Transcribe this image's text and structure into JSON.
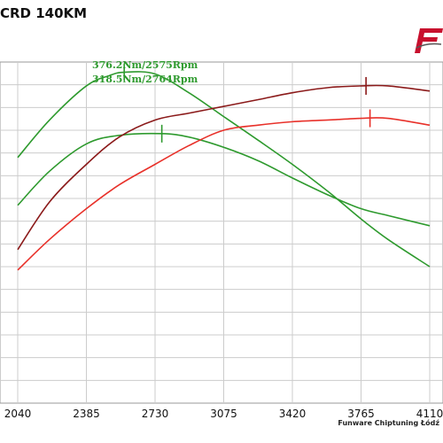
{
  "header": {
    "title": "CRD 140KM",
    "credit": "Funware Chiptuning Łódź"
  },
  "logo": {
    "name": "funware-logo-icon",
    "color": "#c8102e"
  },
  "colors": {
    "green": "#2e9a2e",
    "red": "#e8312a",
    "maroon": "#8b1a1a",
    "grid": "#cccccc"
  },
  "chart_data": {
    "type": "line",
    "title": "",
    "xlabel": "",
    "ylabel": "",
    "xlim": [
      2040,
      4110
    ],
    "ylim": [
      0,
      1
    ],
    "grid": true,
    "x_ticks": [
      "2040",
      "2385",
      "2730",
      "3075",
      "3420",
      "3765",
      "4110"
    ],
    "annotations": [
      {
        "text": "376.2Nm/2575Rpm",
        "x": 2575,
        "series": "torque-tuned"
      },
      {
        "text": "318.5Nm/2764Rpm",
        "x": 2764,
        "series": "torque-stock"
      }
    ],
    "series": [
      {
        "id": "torque-tuned",
        "color": "green",
        "x": [
          2040,
          2200,
          2385,
          2500,
          2575,
          2730,
          2900,
          3075,
          3250,
          3420,
          3600,
          3765,
          3900,
          4110
        ],
        "y": [
          0.72,
          0.83,
          0.93,
          0.96,
          0.97,
          0.965,
          0.91,
          0.84,
          0.77,
          0.7,
          0.62,
          0.54,
          0.48,
          0.4
        ],
        "peak_x": 2575
      },
      {
        "id": "torque-stock",
        "color": "green",
        "x": [
          2040,
          2200,
          2385,
          2550,
          2764,
          2900,
          3075,
          3250,
          3420,
          3600,
          3765,
          3900,
          4110
        ],
        "y": [
          0.58,
          0.68,
          0.76,
          0.785,
          0.79,
          0.78,
          0.75,
          0.71,
          0.66,
          0.61,
          0.57,
          0.55,
          0.52
        ],
        "peak_x": 2764
      },
      {
        "id": "power-tuned",
        "color": "maroon",
        "x": [
          2040,
          2200,
          2385,
          2550,
          2730,
          2900,
          3075,
          3250,
          3420,
          3600,
          3765,
          3900,
          4110
        ],
        "y": [
          0.45,
          0.59,
          0.7,
          0.78,
          0.83,
          0.85,
          0.87,
          0.89,
          0.91,
          0.925,
          0.93,
          0.93,
          0.915
        ],
        "peak_x": 3790
      },
      {
        "id": "power-stock",
        "color": "red",
        "x": [
          2040,
          2200,
          2385,
          2550,
          2730,
          2900,
          3075,
          3250,
          3420,
          3600,
          3765,
          3900,
          4110
        ],
        "y": [
          0.39,
          0.48,
          0.57,
          0.64,
          0.7,
          0.755,
          0.8,
          0.815,
          0.825,
          0.83,
          0.835,
          0.835,
          0.815
        ],
        "peak_x": 3810
      }
    ]
  }
}
